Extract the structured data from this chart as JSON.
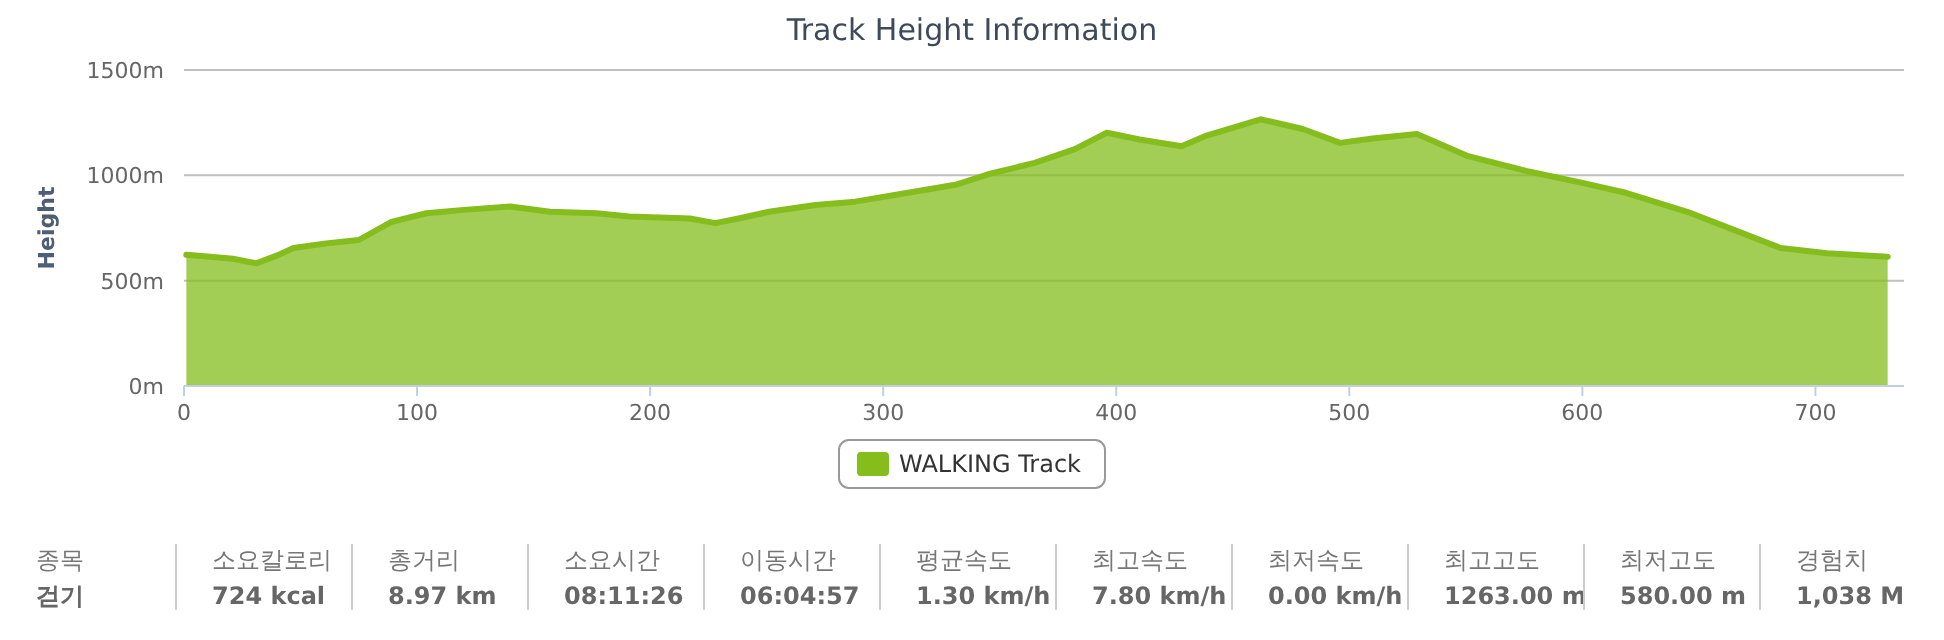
{
  "chart_data": [
    {
      "type": "area",
      "title": "Track Height Information",
      "ylabel": "Height",
      "x": [
        1,
        10,
        21,
        31,
        40,
        47,
        61,
        75,
        89,
        104,
        120,
        140,
        157,
        177,
        191,
        217,
        228,
        240,
        251,
        271,
        288,
        310,
        331,
        345,
        365,
        382,
        396,
        410,
        428,
        438,
        462,
        480,
        496,
        510,
        529,
        551,
        577,
        600,
        619,
        645,
        665,
        685,
        705,
        731
      ],
      "series": [
        {
          "name": "WALKING Track",
          "color": "#84bd1c",
          "values": [
            623,
            615,
            604,
            582,
            620,
            655,
            677,
            693,
            779,
            820,
            836,
            852,
            827,
            820,
            805,
            795,
            773,
            800,
            827,
            859,
            875,
            916,
            955,
            1005,
            1059,
            1123,
            1202,
            1170,
            1138,
            1186,
            1266,
            1220,
            1154,
            1175,
            1196,
            1091,
            1018,
            964,
            916,
            827,
            741,
            655,
            630,
            614
          ]
        }
      ],
      "xlim": [
        0,
        738
      ],
      "xticks": [
        0,
        100,
        200,
        300,
        400,
        500,
        600,
        700
      ],
      "ylim": [
        0,
        1500
      ],
      "yticks": [
        {
          "value": 0,
          "label": "0m"
        },
        {
          "value": 500,
          "label": "500m"
        },
        {
          "value": 1000,
          "label": "1000m"
        },
        {
          "value": 1500,
          "label": "1500m"
        }
      ],
      "grid": "y",
      "legend": "bottom"
    },
    {
      "type": "other",
      "annotations": [
        "종목",
        "걷기",
        "소요칼로리",
        "724 kcal",
        "총거리",
        "8.97 km",
        "소요시간",
        "08:11:26",
        "이동시간",
        "06:04:57",
        "평균속도",
        "1.30 km/h",
        "최고속도",
        "7.80 km/h",
        "최저속도",
        "0.00 km/h",
        "최고고도",
        "1263.00 m",
        "최저고도",
        "580.00 m",
        "경험치",
        "1,038 M"
      ]
    }
  ]
}
